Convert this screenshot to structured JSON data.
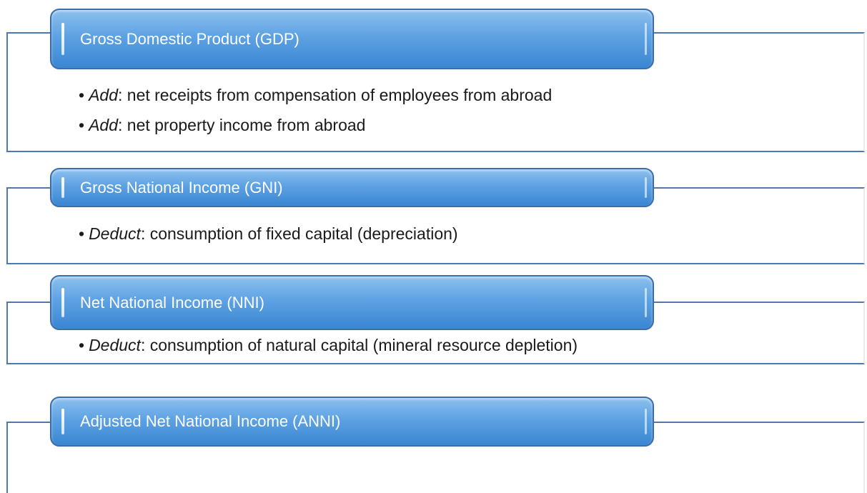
{
  "sections": [
    {
      "title": "Gross Domestic Product (GDP)",
      "bullets": [
        {
          "keyword": "Add",
          "text": ": net receipts from compensation of employees from abroad"
        },
        {
          "keyword": "Add",
          "text": ": net property income from abroad"
        }
      ]
    },
    {
      "title": "Gross National Income (GNI)",
      "bullets": [
        {
          "keyword": "Deduct",
          "text": ": consumption of fixed capital (depreciation)"
        }
      ]
    },
    {
      "title": "Net National Income (NNI)",
      "bullets": [
        {
          "keyword": "Deduct",
          "text": ": consumption of natural capital (mineral resource depletion)"
        }
      ]
    },
    {
      "title": "Adjusted Net National Income (ANNI)",
      "bullets": []
    }
  ]
}
